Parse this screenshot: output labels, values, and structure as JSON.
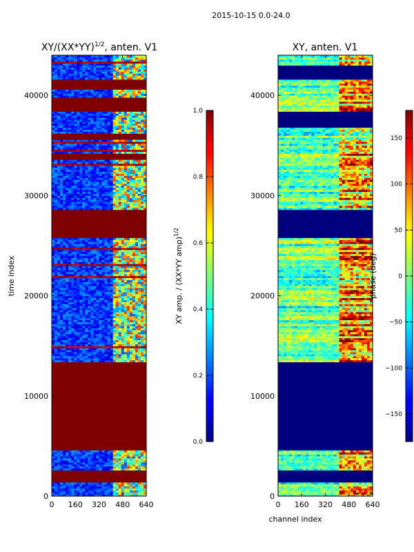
{
  "figure": {
    "suptitle": "2015-10-15 0.0-24.0"
  },
  "chart_data": [
    {
      "type": "heatmap",
      "title": "XY/(XX*YY)",
      "title_superscript": "1/2",
      "title_suffix": ", anten. V1",
      "xlabel": "",
      "ylabel": "time index",
      "xlim": [
        0,
        640
      ],
      "ylim": [
        0,
        44000
      ],
      "x_ticks": [
        0,
        160,
        320,
        480,
        640
      ],
      "y_ticks": [
        0,
        10000,
        20000,
        30000,
        40000
      ],
      "x_tick_labels": [
        "0",
        "160",
        "320",
        "480",
        "640"
      ],
      "y_tick_labels": [
        "0",
        "10000",
        "20000",
        "30000",
        "40000"
      ],
      "colorbar": {
        "label": "XY amp. / (XX*YY amp)",
        "label_superscript": "1/2",
        "range": [
          0.0,
          1.0
        ],
        "ticks": [
          0.0,
          0.2,
          0.4,
          0.6,
          0.8,
          1.0
        ],
        "tick_labels": [
          "0.0",
          "0.2",
          "0.4",
          "0.6",
          "0.8",
          "1.0"
        ]
      },
      "flagged_time_ranges": [
        [
          1400,
          2600
        ],
        [
          4600,
          13400
        ],
        [
          25800,
          28500
        ],
        [
          33500,
          34200
        ],
        [
          35500,
          36200
        ],
        [
          38300,
          39800
        ],
        [
          40600,
          41600
        ]
      ],
      "bright_channel_range": [
        400,
        640
      ]
    },
    {
      "type": "heatmap",
      "title": "XY, anten. V1",
      "xlabel": "channel index",
      "ylabel": "",
      "xlim": [
        0,
        640
      ],
      "ylim": [
        0,
        44000
      ],
      "x_ticks": [
        0,
        160,
        320,
        480,
        640
      ],
      "y_ticks": [
        0,
        10000,
        20000,
        30000,
        40000
      ],
      "x_tick_labels": [
        "0",
        "160",
        "320",
        "480",
        "640"
      ],
      "y_tick_labels": [
        "0",
        "10000",
        "20000",
        "30000",
        "40000"
      ],
      "colorbar": {
        "label": "phase (deg)",
        "range": [
          -180,
          180
        ],
        "ticks": [
          -150,
          -100,
          -50,
          0,
          50,
          100,
          150
        ],
        "tick_labels": [
          "−150",
          "−100",
          "−50",
          "0",
          "50",
          "100",
          "150"
        ]
      },
      "flagged_time_ranges": [
        [
          1400,
          2600
        ],
        [
          4600,
          13400
        ],
        [
          25800,
          28500
        ],
        [
          36700,
          38300
        ],
        [
          41600,
          43000
        ]
      ],
      "bright_channel_range": [
        400,
        640
      ]
    }
  ]
}
